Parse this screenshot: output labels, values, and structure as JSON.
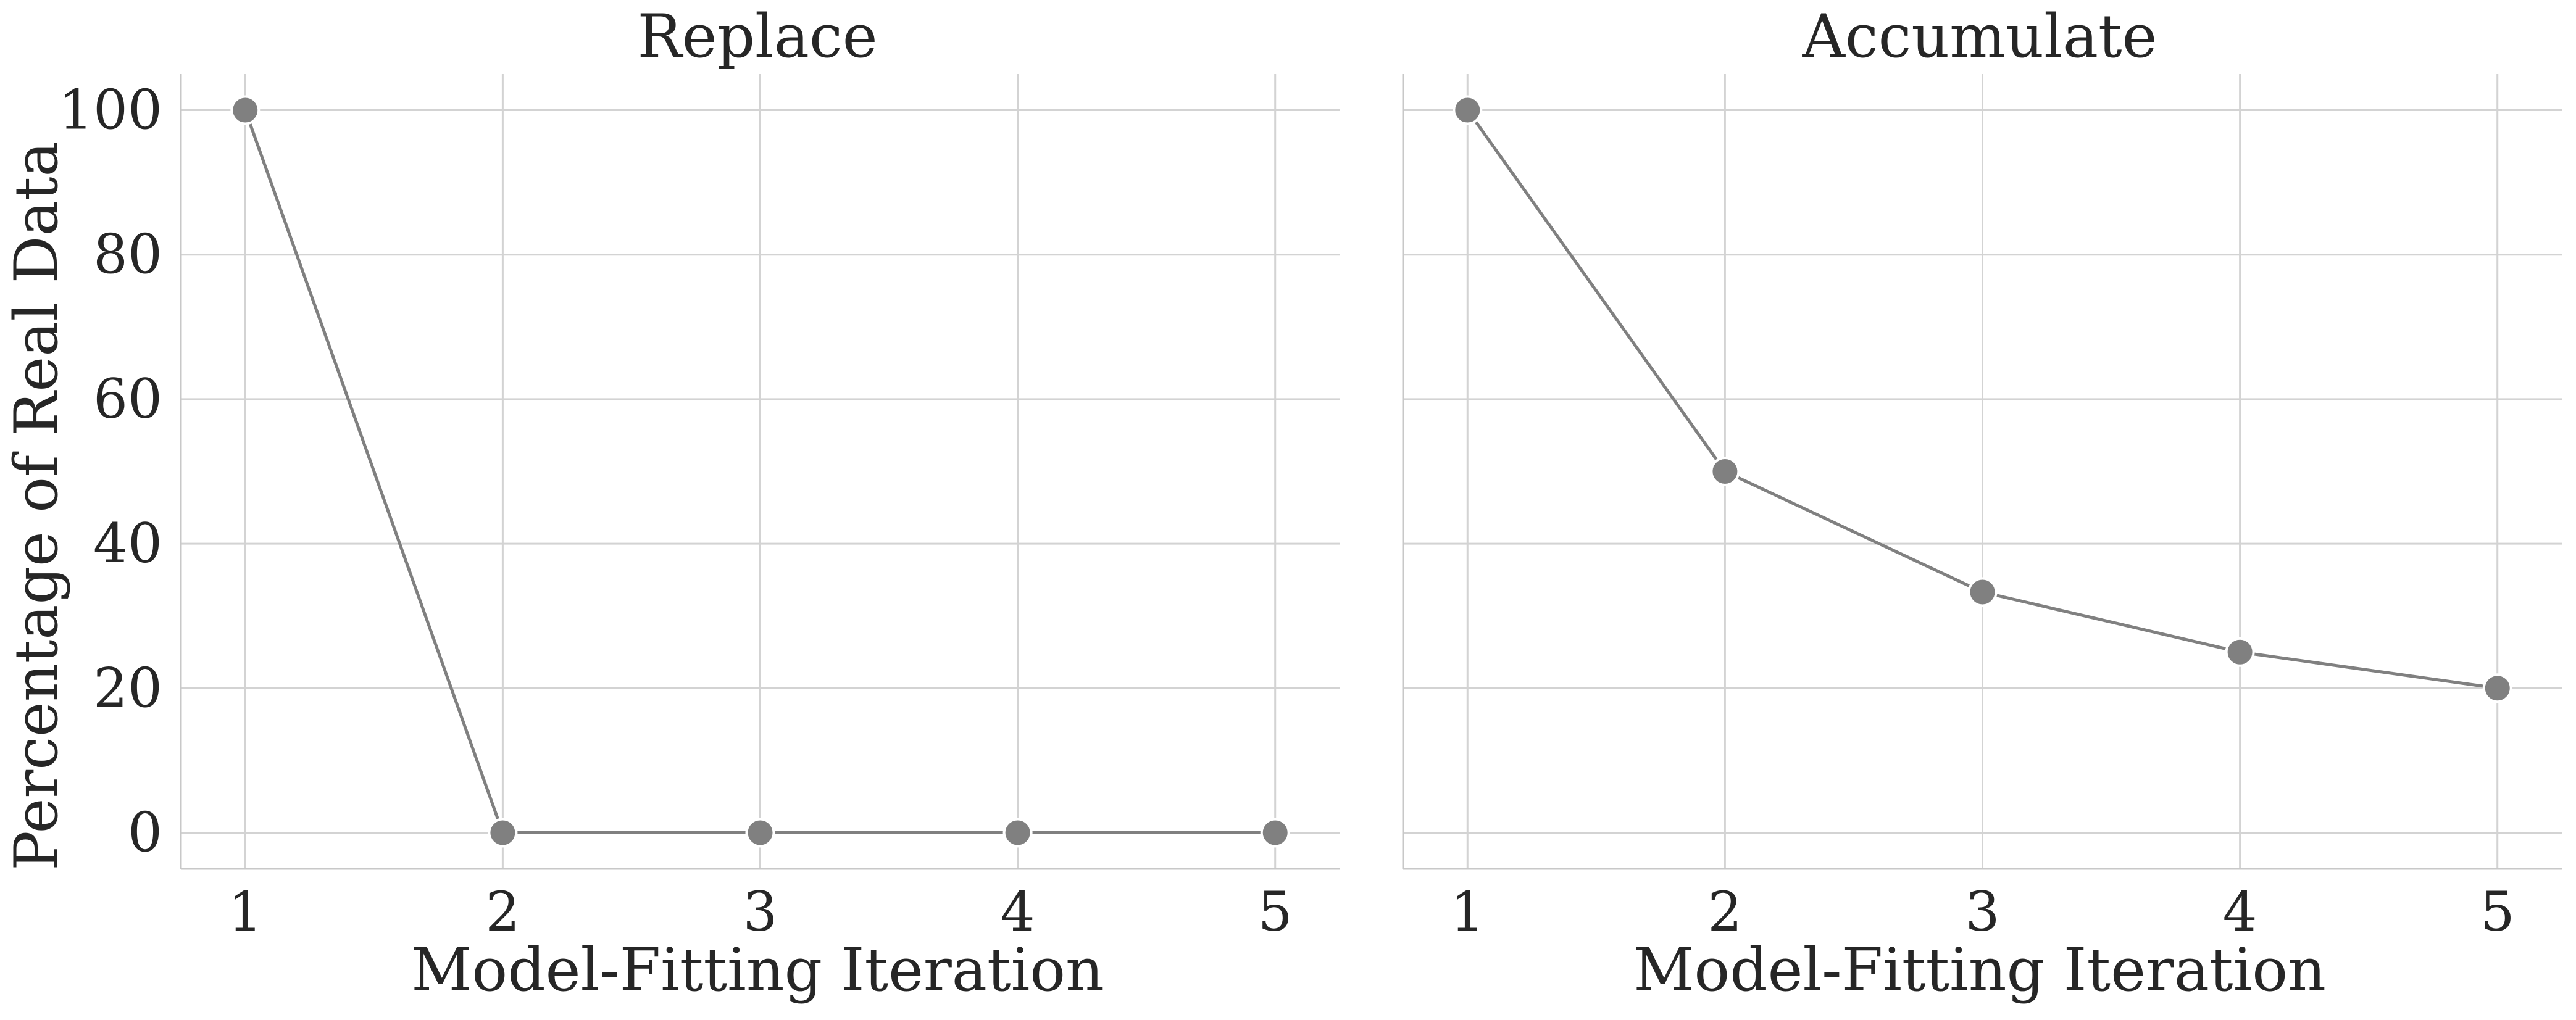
{
  "chart_data": [
    {
      "type": "line",
      "title": "Replace",
      "xlabel": "Model-Fitting Iteration",
      "ylabel": "Percentage of Real Data",
      "x": [
        1,
        2,
        3,
        4,
        5
      ],
      "series": [
        {
          "values": [
            100,
            0,
            0,
            0,
            0
          ],
          "color": "#808080"
        }
      ],
      "xticks": [
        1,
        2,
        3,
        4,
        5
      ],
      "yticks": [
        0,
        20,
        40,
        60,
        80,
        100
      ],
      "xlim": [
        0.75,
        5.25
      ],
      "ylim": [
        -5,
        105
      ],
      "grid": true,
      "legend": "none"
    },
    {
      "type": "line",
      "title": "Accumulate",
      "xlabel": "Model-Fitting Iteration",
      "ylabel": "",
      "x": [
        1,
        2,
        3,
        4,
        5
      ],
      "series": [
        {
          "values": [
            100,
            50,
            33.3,
            25,
            20
          ],
          "color": "#808080"
        }
      ],
      "xticks": [
        1,
        2,
        3,
        4,
        5
      ],
      "yticks": [
        0,
        20,
        40,
        60,
        80,
        100
      ],
      "xlim": [
        0.75,
        5.25
      ],
      "ylim": [
        -5,
        105
      ],
      "grid": true,
      "legend": "none",
      "shared_y": true
    }
  ]
}
